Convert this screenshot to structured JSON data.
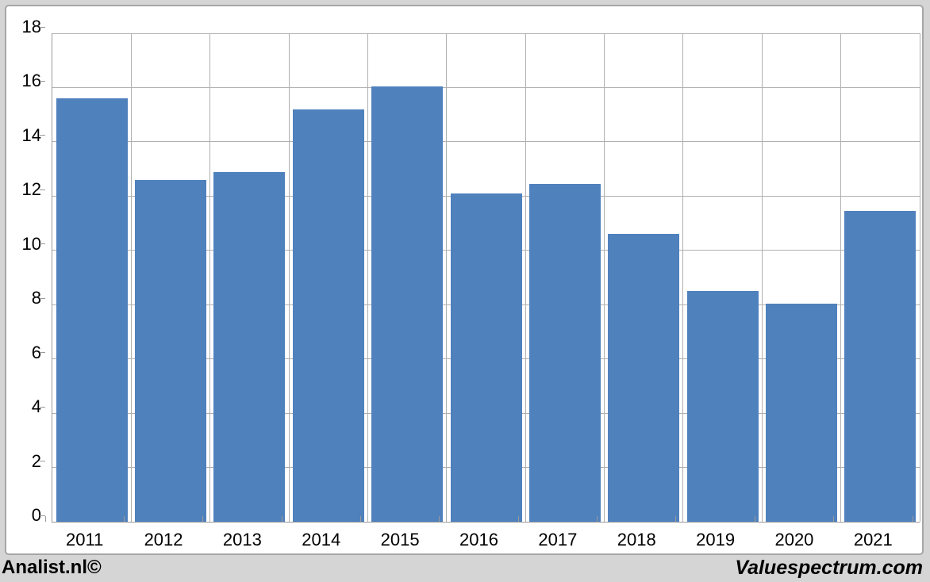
{
  "chart_data": {
    "type": "bar",
    "title": "",
    "xlabel": "",
    "ylabel": "",
    "categories": [
      "2011",
      "2012",
      "2013",
      "2014",
      "2015",
      "2016",
      "2017",
      "2018",
      "2019",
      "2020",
      "2021"
    ],
    "values": [
      15.6,
      12.6,
      12.9,
      15.2,
      16.05,
      12.1,
      12.45,
      10.6,
      8.5,
      8.05,
      11.45
    ],
    "ylim": [
      0,
      18
    ],
    "yticks": [
      0,
      2,
      4,
      6,
      8,
      10,
      12,
      14,
      16,
      18
    ],
    "bar_color": "#4f81bd",
    "gridline_color": "#b0b0b0",
    "axis_color": "#9a9a9a",
    "grid": "both-horizontal-and-vertical",
    "legend": "none"
  },
  "footer": {
    "left": "Analist.nl©",
    "right": "Valuespectrum.com"
  }
}
